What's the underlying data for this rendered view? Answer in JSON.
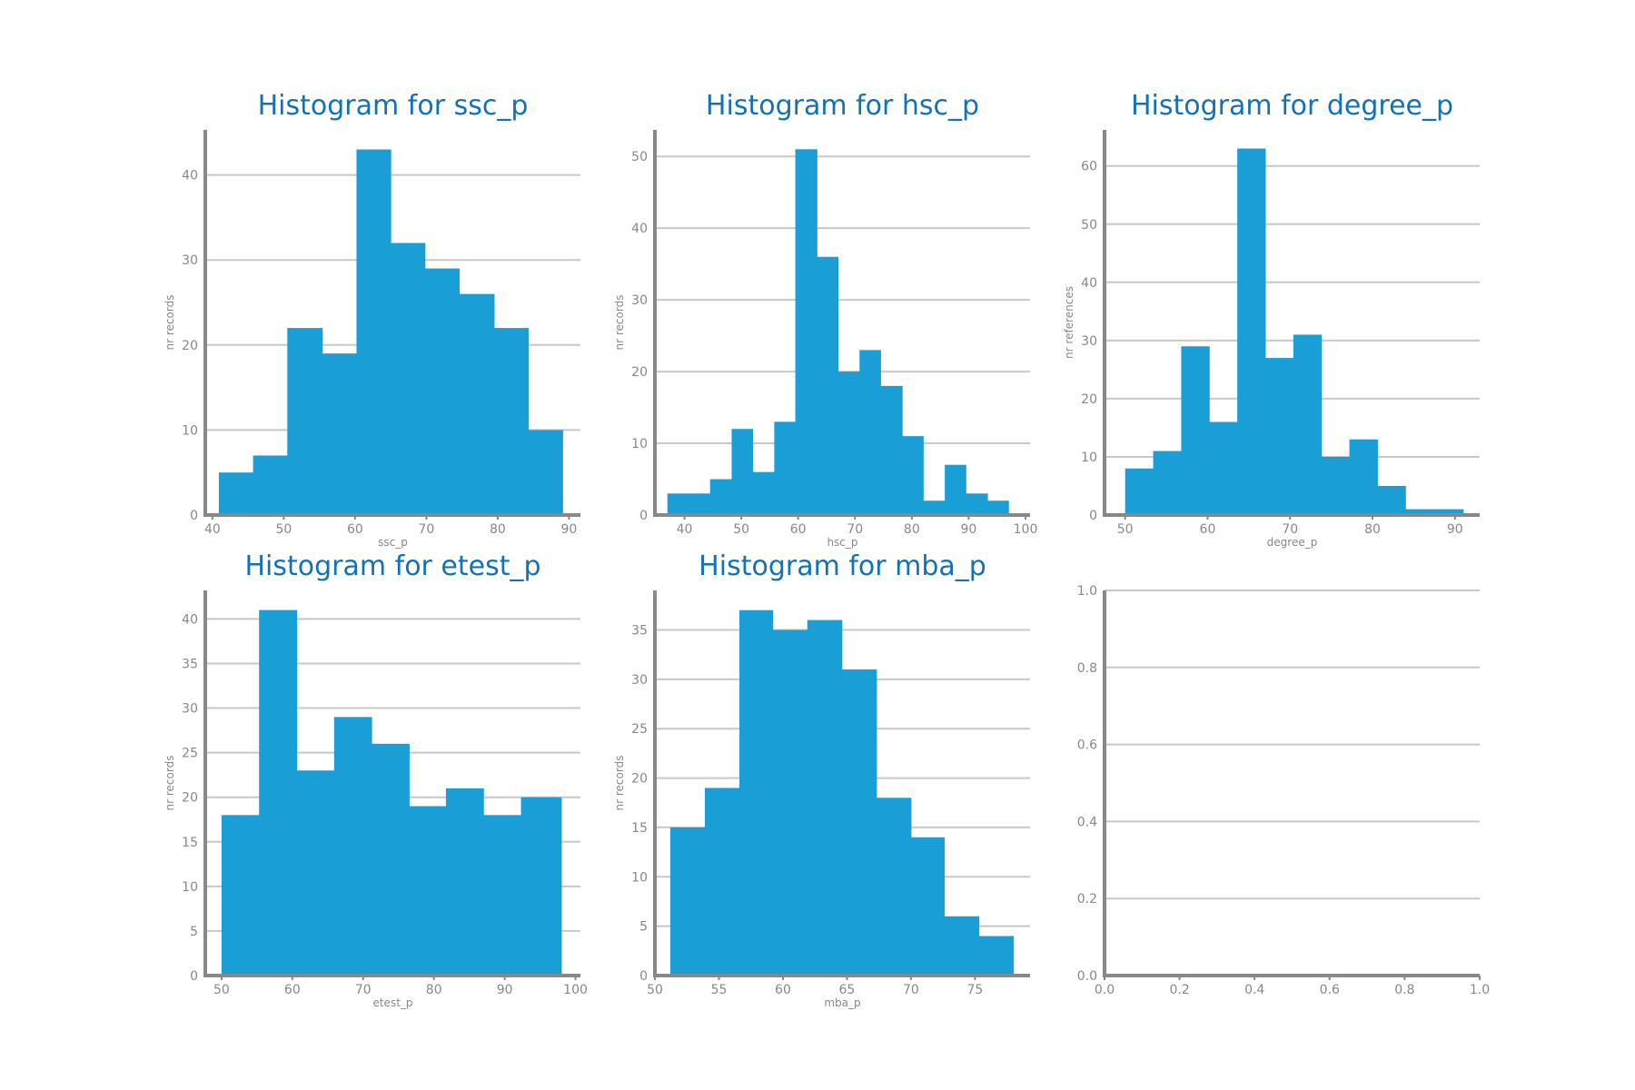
{
  "colors": {
    "bar": "#1a9ed6",
    "title": "#1372b5",
    "axis": "#888888",
    "grid": "#c8c8c8"
  },
  "chart_data": [
    {
      "type": "bar",
      "title": "Histogram for ssc_p",
      "xlabel": "ssc_p",
      "ylabel": "nr records",
      "xlim": [
        39,
        91.6
      ],
      "ylim": [
        0,
        45.3
      ],
      "xticks": [
        40,
        50,
        60,
        70,
        80,
        90
      ],
      "yticks": [
        0,
        10,
        20,
        30,
        40
      ],
      "ytick_labels": [
        "0",
        "10",
        "20",
        "30",
        "40"
      ],
      "bin_edges": [
        40.9,
        45.7,
        50.5,
        55.4,
        60.2,
        65.0,
        69.8,
        74.6,
        79.5,
        84.3,
        89.1
      ],
      "values": [
        5,
        7,
        22,
        19,
        43,
        32,
        29,
        26,
        22,
        10
      ]
    },
    {
      "type": "bar",
      "title": "Histogram for hsc_p",
      "xlabel": "hsc_p",
      "ylabel": "nr records",
      "xlim": [
        34.8,
        100.8
      ],
      "ylim": [
        0,
        53.7
      ],
      "xticks": [
        40,
        50,
        60,
        70,
        80,
        90,
        100
      ],
      "yticks": [
        0,
        10,
        20,
        30,
        40,
        50
      ],
      "ytick_labels": [
        "0",
        "10",
        "20",
        "30",
        "40",
        "50"
      ],
      "bin_edges": [
        37.0,
        40.8,
        44.5,
        48.3,
        52.0,
        55.8,
        59.5,
        63.3,
        67.0,
        70.8,
        74.5,
        78.3,
        82.0,
        85.8,
        89.5,
        93.3,
        97.0
      ],
      "values": [
        3,
        3,
        5,
        12,
        6,
        13,
        51,
        36,
        20,
        23,
        18,
        11,
        2,
        7,
        3,
        2
      ]
    },
    {
      "type": "bar",
      "title": "Histogram for degree_p",
      "xlabel": "degree_p",
      "ylabel": "nr references",
      "xlim": [
        47.5,
        93.0
      ],
      "ylim": [
        0,
        66.2
      ],
      "xticks": [
        50,
        60,
        70,
        80,
        90
      ],
      "yticks": [
        0,
        10,
        20,
        30,
        40,
        50,
        60
      ],
      "ytick_labels": [
        "0",
        "10",
        "20",
        "30",
        "40",
        "50",
        "60"
      ],
      "bin_edges": [
        50.0,
        53.4,
        56.8,
        60.2,
        63.6,
        67.0,
        70.4,
        73.8,
        77.2,
        80.6,
        84.0,
        87.4,
        91.0
      ],
      "values": [
        8,
        11,
        29,
        16,
        63,
        27,
        31,
        10,
        13,
        5,
        1,
        1
      ]
    },
    {
      "type": "bar",
      "title": "Histogram for etest_p",
      "xlabel": "etest_p",
      "ylabel": "nr records",
      "xlim": [
        47.7,
        100.7
      ],
      "ylim": [
        0,
        43.2
      ],
      "xticks": [
        50,
        60,
        70,
        80,
        90,
        100
      ],
      "yticks": [
        0,
        5,
        10,
        15,
        20,
        25,
        30,
        35,
        40
      ],
      "ytick_labels": [
        "0",
        "5",
        "10",
        "15",
        "20",
        "25",
        "30",
        "35",
        "40"
      ],
      "bin_edges": [
        50.0,
        55.3,
        60.6,
        65.9,
        71.2,
        76.5,
        81.7,
        87.0,
        92.3,
        98.0
      ],
      "values": [
        18,
        41,
        23,
        29,
        26,
        19,
        21,
        18,
        20
      ]
    },
    {
      "type": "bar",
      "title": "Histogram for mba_p",
      "xlabel": "mba_p",
      "ylabel": "nr records",
      "xlim": [
        50.0,
        79.3
      ],
      "ylim": [
        0,
        39.0
      ],
      "xticks": [
        50,
        55,
        60,
        65,
        70,
        75
      ],
      "yticks": [
        0,
        5,
        10,
        15,
        20,
        25,
        30,
        35
      ],
      "ytick_labels": [
        "0",
        "5",
        "10",
        "15",
        "20",
        "25",
        "30",
        "35"
      ],
      "bin_edges": [
        51.2,
        53.9,
        56.6,
        59.2,
        61.9,
        64.6,
        67.3,
        70.0,
        72.6,
        75.3,
        78.0
      ],
      "values": [
        15,
        19,
        37,
        35,
        36,
        31,
        18,
        14,
        6,
        4
      ]
    },
    {
      "type": "bar",
      "title": "",
      "xlabel": "",
      "ylabel": "",
      "xlim": [
        0,
        1
      ],
      "ylim": [
        0,
        1
      ],
      "xticks": [
        0,
        0.2,
        0.4,
        0.6,
        0.8,
        1.0
      ],
      "xtick_labels": [
        "0.0",
        "0.2",
        "0.4",
        "0.6",
        "0.8",
        "1.0"
      ],
      "yticks": [
        0,
        0.2,
        0.4,
        0.6,
        0.8,
        1.0
      ],
      "ytick_labels": [
        "0.0",
        "0.2",
        "0.4",
        "0.6",
        "0.8",
        "1.0"
      ],
      "bin_edges": [],
      "values": []
    }
  ]
}
